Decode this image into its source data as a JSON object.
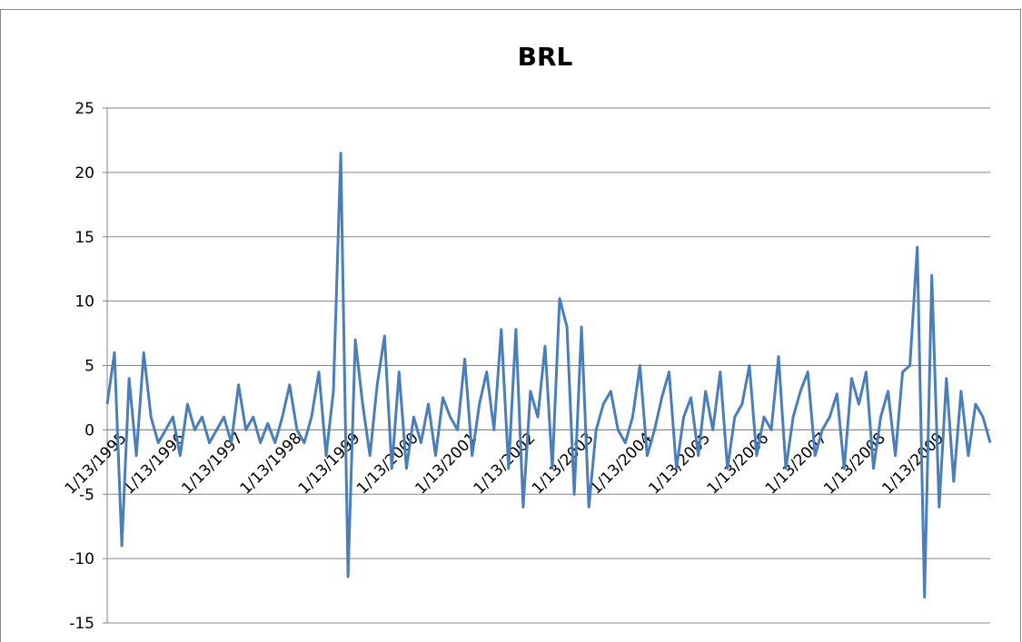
{
  "chart_data": {
    "type": "line",
    "title": "BRL",
    "categories": [
      "1/13/1995",
      null,
      null,
      null,
      null,
      null,
      null,
      null,
      "1/13/1996",
      null,
      null,
      null,
      null,
      null,
      null,
      null,
      "1/13/1997",
      null,
      null,
      null,
      null,
      null,
      null,
      null,
      "1/13/1998",
      null,
      null,
      null,
      null,
      null,
      null,
      null,
      "1/13/1999",
      null,
      null,
      null,
      null,
      null,
      null,
      null,
      "1/13/2000",
      null,
      null,
      null,
      null,
      null,
      null,
      null,
      "1/13/2001",
      null,
      null,
      null,
      null,
      null,
      null,
      null,
      "1/13/2002",
      null,
      null,
      null,
      null,
      null,
      null,
      null,
      "1/13/2003",
      null,
      null,
      null,
      null,
      null,
      null,
      null,
      "1/13/2004",
      null,
      null,
      null,
      null,
      null,
      null,
      null,
      "1/13/2005",
      null,
      null,
      null,
      null,
      null,
      null,
      null,
      "1/13/2006",
      null,
      null,
      null,
      null,
      null,
      null,
      null,
      "1/13/2007",
      null,
      null,
      null,
      null,
      null,
      null,
      null,
      "1/13/2008",
      null,
      null,
      null,
      null,
      null,
      null,
      null,
      "1/13/2009",
      null,
      null,
      null,
      null,
      null,
      null,
      null,
      null,
      null
    ],
    "values": [
      2,
      6,
      -9,
      4,
      -2,
      6,
      1,
      -1,
      0,
      1,
      -2,
      2,
      0,
      1,
      -1,
      0,
      1,
      -1,
      3.5,
      0,
      1,
      -1,
      0.5,
      -1,
      1,
      3.5,
      0,
      -1,
      1,
      4.5,
      -2,
      3,
      21.5,
      -11.4,
      7,
      2,
      -2,
      3.5,
      7.3,
      -3,
      4.5,
      -3,
      1,
      -1,
      2,
      -2,
      2.5,
      1,
      0,
      5.5,
      -2,
      2,
      4.5,
      0,
      7.8,
      -3,
      7.8,
      -6,
      3,
      1,
      6.5,
      -3,
      10.2,
      8,
      -5,
      8,
      -6,
      0,
      2,
      3,
      0,
      -1,
      1,
      5,
      -2,
      0,
      2.5,
      4.5,
      -3,
      1,
      2.5,
      -2,
      3,
      0,
      4.5,
      -3,
      1,
      2,
      5,
      -2,
      1,
      0,
      5.7,
      -3,
      1,
      3,
      4.5,
      -2,
      0,
      1,
      2.8,
      -3,
      4,
      2,
      4.5,
      -3,
      1,
      3,
      -2,
      4.5,
      5,
      14.2,
      -13,
      12,
      -6,
      4,
      -4,
      3,
      -2,
      2,
      1,
      -1
    ],
    "color": "#4a7ebb",
    "ylim": [
      -15,
      25
    ],
    "yticks": [
      -15,
      -10,
      -5,
      0,
      5,
      10,
      15,
      20,
      25
    ],
    "grid": true
  }
}
